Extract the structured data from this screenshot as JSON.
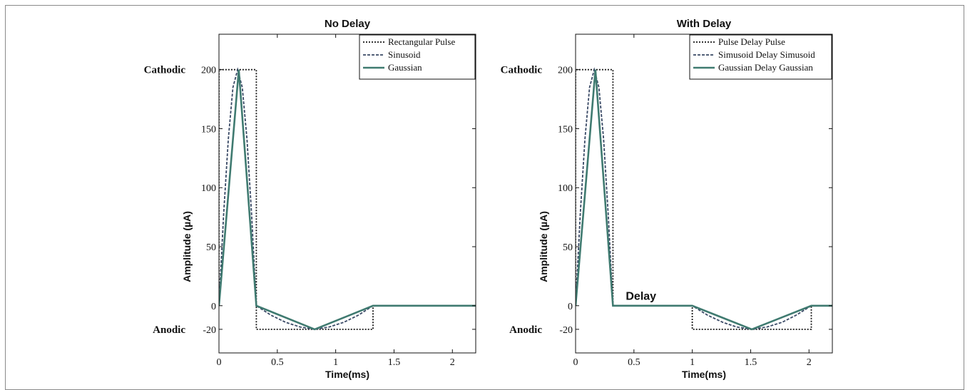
{
  "chart_data": [
    {
      "type": "line",
      "title": "No Delay",
      "xlabel": "Time(ms)",
      "ylabel": "Amplitude (µA)",
      "xlim": [
        0,
        2.2
      ],
      "ylim": [
        -40,
        230
      ],
      "xticks": [
        "0",
        "0.5",
        "1",
        "1.5",
        "2"
      ],
      "yticks": [
        "-20",
        "0",
        "50",
        "100",
        "150",
        "200"
      ],
      "side_labels": {
        "cathodic": "Cathodic",
        "anodic": "Anodic"
      },
      "grid": false,
      "legend_position": "top-right",
      "series": [
        {
          "name": "Rectangular Pulse",
          "style": "dotted",
          "color": "#1a1a1a",
          "x": [
            0,
            0,
            0.32,
            0.32,
            1.32,
            1.32,
            2.2
          ],
          "y": [
            0,
            200,
            200,
            -20,
            -20,
            0,
            0
          ]
        },
        {
          "name": "Sinusoid",
          "style": "dashed",
          "color": "#3a4a66",
          "x": [
            0,
            0.04,
            0.08,
            0.12,
            0.16,
            0.2,
            0.24,
            0.28,
            0.32,
            0.445,
            0.57,
            0.695,
            0.82,
            0.945,
            1.07,
            1.195,
            1.32,
            2.2
          ],
          "y": [
            0,
            77,
            141,
            185,
            200,
            185,
            141,
            77,
            0,
            -8,
            -14,
            -18,
            -20,
            -18,
            -14,
            -8,
            0,
            0
          ]
        },
        {
          "name": "Gaussian",
          "style": "solid",
          "color": "#3f7a70",
          "x": [
            0,
            0.17,
            0.32,
            0.82,
            1.32,
            2.2
          ],
          "y": [
            0,
            200,
            0,
            -20,
            0,
            0
          ]
        }
      ]
    },
    {
      "type": "line",
      "title": "With Delay",
      "xlabel": "Time(ms)",
      "ylabel": "Amplitude (µA)",
      "xlim": [
        0,
        2.2
      ],
      "ylim": [
        -40,
        230
      ],
      "xticks": [
        "0",
        "0.5",
        "1",
        "1.5",
        "2"
      ],
      "yticks": [
        "-20",
        "0",
        "50",
        "100",
        "150",
        "200"
      ],
      "side_labels": {
        "cathodic": "Cathodic",
        "anodic": "Anodic"
      },
      "annotation": "Delay",
      "grid": false,
      "legend_position": "top-right",
      "series": [
        {
          "name": "Pulse Delay Pulse",
          "style": "dotted",
          "color": "#1a1a1a",
          "x": [
            0,
            0,
            0.32,
            0.32,
            1.0,
            1.0,
            2.02,
            2.02,
            2.2
          ],
          "y": [
            0,
            200,
            200,
            0,
            0,
            -20,
            -20,
            0,
            0
          ]
        },
        {
          "name": "Simusoid Delay Simusoid",
          "style": "dashed",
          "color": "#3a4a66",
          "x": [
            0,
            0.04,
            0.08,
            0.12,
            0.16,
            0.2,
            0.24,
            0.28,
            0.32,
            1.0,
            1.13,
            1.26,
            1.38,
            1.51,
            1.64,
            1.77,
            1.89,
            2.02,
            2.2
          ],
          "y": [
            0,
            77,
            141,
            185,
            200,
            185,
            141,
            77,
            0,
            0,
            -8,
            -14,
            -18,
            -20,
            -18,
            -14,
            -8,
            0,
            0
          ]
        },
        {
          "name": "Gaussian Delay Gaussian",
          "style": "solid",
          "color": "#3f7a70",
          "x": [
            0,
            0.17,
            0.32,
            1.0,
            1.51,
            2.02,
            2.2
          ],
          "y": [
            0,
            200,
            0,
            0,
            -20,
            0,
            0
          ]
        }
      ]
    }
  ]
}
